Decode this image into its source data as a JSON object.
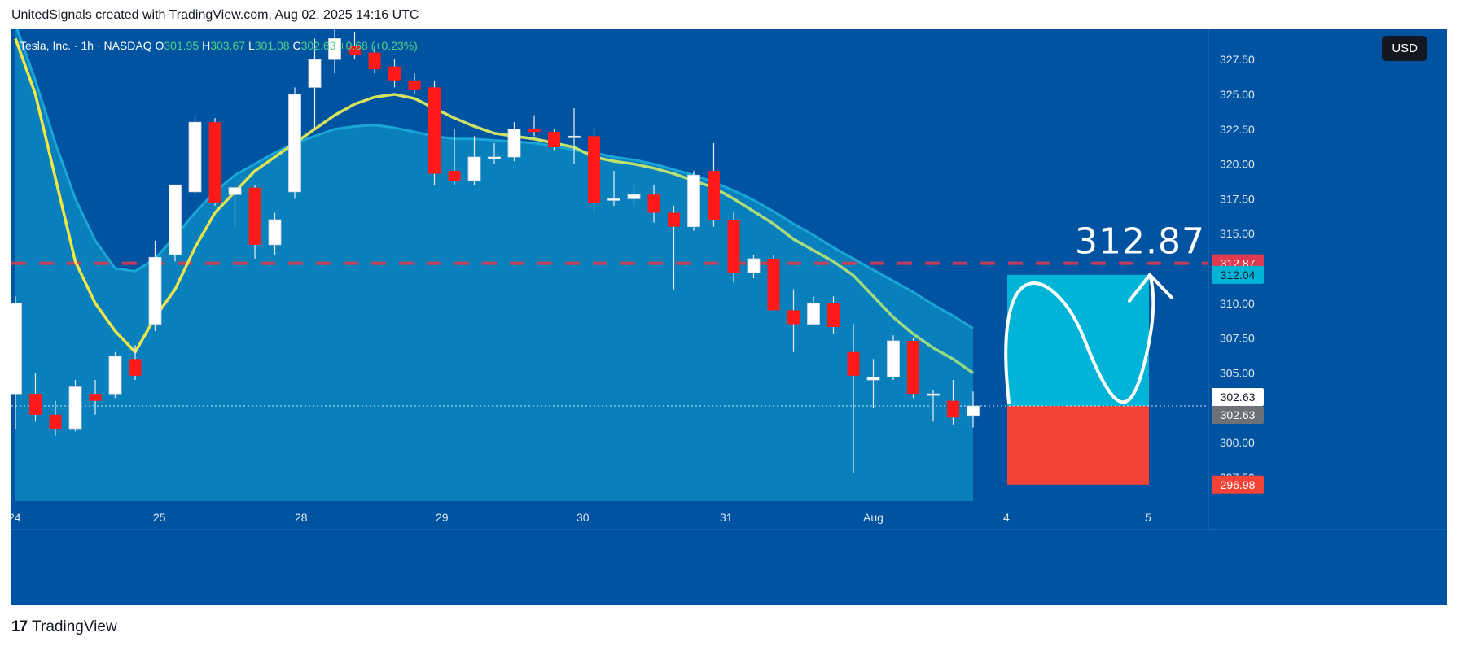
{
  "header": {
    "text": "UnitedSignals created with TradingView.com, Aug 02, 2025 14:16 UTC"
  },
  "legend": {
    "symbol": "Tesla, Inc. · 1h · NASDAQ",
    "o_label": "O",
    "o_value": "301.95",
    "h_label": "H",
    "h_value": "303.67",
    "l_label": "L",
    "l_value": "301.08",
    "c_label": "C",
    "c_value": "302.63",
    "change": "+0.68 (+0.23%)"
  },
  "currency_button": "USD",
  "footer": {
    "logo_mark": "17",
    "logo_text": "TradingView"
  },
  "colors": {
    "background": "#0053a0",
    "band_fill": "#0a87bf",
    "ema_fast": "#f5e642",
    "ema_slow": "#8fd88a",
    "up_candle": "#ffffff",
    "down_candle": "#ff1a1a",
    "target_box": "#00b4d8",
    "stop_box": "#f44336",
    "dashed_level": "#e03a4e"
  },
  "chart_data": {
    "type": "candlestick",
    "symbol": "TSLA",
    "timeframe": "1h",
    "ylim": [
      295.8,
      328.5
    ],
    "y_ticks": [
      "327.50",
      "325.00",
      "322.50",
      "320.00",
      "317.50",
      "315.00",
      "312.50",
      "310.00",
      "307.50",
      "305.00",
      "302.50",
      "300.00",
      "297.50"
    ],
    "x_labels": [
      "24",
      "25",
      "28",
      "29",
      "30",
      "31",
      "Aug",
      "4",
      "5"
    ],
    "candles": [
      {
        "o": 303.5,
        "h": 310.5,
        "l": 301.0,
        "c": 310.0
      },
      {
        "o": 303.5,
        "h": 305.0,
        "l": 301.5,
        "c": 302.0
      },
      {
        "o": 302.0,
        "h": 303.0,
        "l": 300.5,
        "c": 301.0
      },
      {
        "o": 301.0,
        "h": 304.5,
        "l": 300.8,
        "c": 304.0
      },
      {
        "o": 303.5,
        "h": 304.5,
        "l": 302.0,
        "c": 303.0
      },
      {
        "o": 303.5,
        "h": 306.5,
        "l": 303.2,
        "c": 306.2
      },
      {
        "o": 306.0,
        "h": 307.0,
        "l": 304.5,
        "c": 304.8
      },
      {
        "o": 308.5,
        "h": 314.5,
        "l": 308.0,
        "c": 313.3
      },
      {
        "o": 313.5,
        "h": 318.5,
        "l": 313.0,
        "c": 318.5
      },
      {
        "o": 318.0,
        "h": 323.5,
        "l": 317.8,
        "c": 323.0
      },
      {
        "o": 323.0,
        "h": 323.3,
        "l": 317.0,
        "c": 317.2
      },
      {
        "o": 317.8,
        "h": 318.5,
        "l": 315.5,
        "c": 318.3
      },
      {
        "o": 318.3,
        "h": 318.5,
        "l": 313.2,
        "c": 314.2
      },
      {
        "o": 314.2,
        "h": 316.5,
        "l": 313.5,
        "c": 316.0
      },
      {
        "o": 318.0,
        "h": 325.5,
        "l": 317.5,
        "c": 325.0
      },
      {
        "o": 325.5,
        "h": 329.0,
        "l": 322.5,
        "c": 327.5
      },
      {
        "o": 327.5,
        "h": 330.0,
        "l": 326.5,
        "c": 329.0
      },
      {
        "o": 328.5,
        "h": 329.5,
        "l": 327.5,
        "c": 327.8
      },
      {
        "o": 328.0,
        "h": 328.5,
        "l": 326.5,
        "c": 326.8
      },
      {
        "o": 327.0,
        "h": 327.5,
        "l": 325.5,
        "c": 326.0
      },
      {
        "o": 326.0,
        "h": 326.5,
        "l": 325.0,
        "c": 325.3
      },
      {
        "o": 325.5,
        "h": 326.0,
        "l": 318.5,
        "c": 319.3
      },
      {
        "o": 319.5,
        "h": 322.5,
        "l": 318.5,
        "c": 318.8
      },
      {
        "o": 318.8,
        "h": 322.0,
        "l": 318.5,
        "c": 320.5
      },
      {
        "o": 320.5,
        "h": 321.5,
        "l": 320.0,
        "c": 320.5
      },
      {
        "o": 320.5,
        "h": 323.0,
        "l": 320.2,
        "c": 322.5
      },
      {
        "o": 322.5,
        "h": 323.5,
        "l": 322.0,
        "c": 322.3
      },
      {
        "o": 322.3,
        "h": 322.5,
        "l": 321.0,
        "c": 321.2
      },
      {
        "o": 322.0,
        "h": 324.0,
        "l": 320.0,
        "c": 322.0
      },
      {
        "o": 322.0,
        "h": 322.5,
        "l": 316.5,
        "c": 317.2
      },
      {
        "o": 317.5,
        "h": 319.5,
        "l": 317.0,
        "c": 317.5
      },
      {
        "o": 317.5,
        "h": 318.5,
        "l": 317.0,
        "c": 317.8
      },
      {
        "o": 317.8,
        "h": 318.5,
        "l": 315.8,
        "c": 316.5
      },
      {
        "o": 316.5,
        "h": 317.0,
        "l": 311.0,
        "c": 315.5
      },
      {
        "o": 315.5,
        "h": 319.5,
        "l": 315.2,
        "c": 319.2
      },
      {
        "o": 319.5,
        "h": 321.5,
        "l": 315.5,
        "c": 316.0
      },
      {
        "o": 316.0,
        "h": 316.5,
        "l": 311.5,
        "c": 312.2
      },
      {
        "o": 312.2,
        "h": 313.5,
        "l": 311.8,
        "c": 313.2
      },
      {
        "o": 313.2,
        "h": 313.5,
        "l": 309.5,
        "c": 309.5
      },
      {
        "o": 309.5,
        "h": 311.0,
        "l": 306.5,
        "c": 308.5
      },
      {
        "o": 308.5,
        "h": 310.5,
        "l": 308.5,
        "c": 310.0
      },
      {
        "o": 310.0,
        "h": 310.5,
        "l": 307.8,
        "c": 308.3
      },
      {
        "o": 306.5,
        "h": 308.5,
        "l": 297.8,
        "c": 304.8
      },
      {
        "o": 304.5,
        "h": 306.0,
        "l": 302.5,
        "c": 304.7
      },
      {
        "o": 304.7,
        "h": 307.7,
        "l": 304.5,
        "c": 307.3
      },
      {
        "o": 307.3,
        "h": 307.5,
        "l": 303.2,
        "c": 303.5
      },
      {
        "o": 303.5,
        "h": 303.8,
        "l": 301.5,
        "c": 303.5
      },
      {
        "o": 303.0,
        "h": 304.5,
        "l": 301.3,
        "c": 301.8
      },
      {
        "o": 301.95,
        "h": 303.67,
        "l": 301.08,
        "c": 302.63
      }
    ],
    "ema_fast": [
      329,
      325,
      319,
      313,
      310,
      308,
      306.5,
      309,
      311,
      314,
      316.5,
      318,
      319.5,
      320.5,
      321.5,
      322.5,
      323.5,
      324.3,
      324.8,
      325.0,
      324.7,
      324.0,
      323.3,
      322.7,
      322.2,
      322.0,
      321.8,
      321.5,
      321.2,
      320.5,
      320.2,
      320.0,
      319.7,
      319.3,
      318.8,
      318.3,
      317.5,
      316.6,
      315.7,
      314.6,
      313.8,
      313.0,
      312.0,
      310.5,
      309.0,
      307.8,
      306.8,
      306.0,
      305.0
    ],
    "ema_slow": [
      330,
      326,
      321.5,
      317.5,
      314.5,
      312.5,
      312.3,
      313.2,
      314.8,
      316.5,
      318.0,
      319.2,
      320.0,
      320.8,
      321.5,
      322.0,
      322.5,
      322.7,
      322.8,
      322.6,
      322.3,
      322.0,
      321.8,
      321.8,
      321.7,
      321.6,
      321.5,
      321.3,
      321.0,
      320.8,
      320.5,
      320.3,
      320.0,
      319.6,
      319.2,
      318.7,
      318.1,
      317.4,
      316.6,
      315.7,
      314.9,
      314.0,
      313.2,
      312.4,
      311.6,
      310.8,
      309.9,
      309.1,
      308.2
    ],
    "level_line": 312.87,
    "level_label": "312.87",
    "price_badges": [
      {
        "value": 312.87,
        "label": "312.87",
        "bg": "#e03a4e",
        "fg": "#ffffff"
      },
      {
        "value": 312.04,
        "label": "312.04",
        "bg": "#00b4d8",
        "fg": "#131722"
      },
      {
        "value": 302.63,
        "label": "302.63",
        "bg": "#ffffff",
        "fg": "#131722"
      },
      {
        "value": 302.63,
        "label": "302.63",
        "bg": "#6c7078",
        "fg": "#ffffff"
      },
      {
        "value": 296.98,
        "label": "296.98",
        "bg": "#f44336",
        "fg": "#ffffff"
      }
    ],
    "position": {
      "entry": 302.63,
      "target": 312.04,
      "stop": 296.98
    },
    "current_price": 302.63
  }
}
